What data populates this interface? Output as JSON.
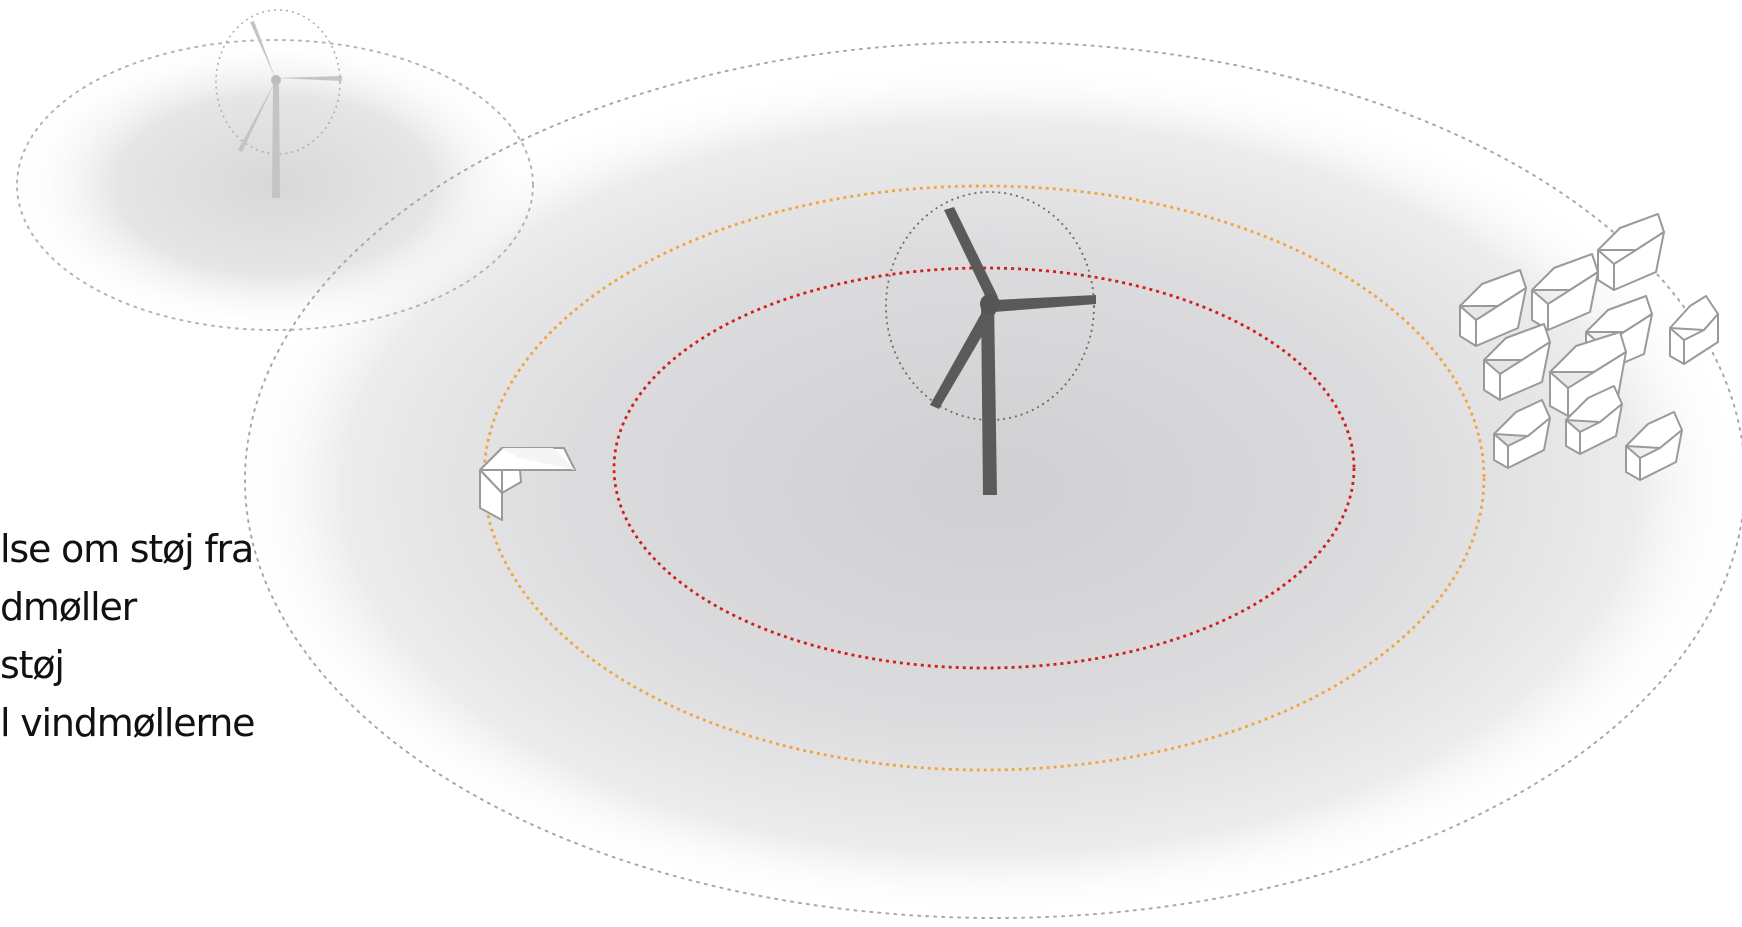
{
  "caption": {
    "lines": [
      "lse om støj fra",
      "dmøller",
      "støj",
      "l vindmøllerne"
    ]
  },
  "colors": {
    "outer_zone_ring": "#a8a8a8",
    "orange_ring": "#f0a640",
    "red_ring": "#d21e1e",
    "main_turbine": "#5a5a5a",
    "faded_turbine": "#bdbdbd",
    "house_outline": "#9a9a9a",
    "shade": "#d4d4d6"
  },
  "icons": {
    "turbine": "wind-turbine-icon",
    "house": "house-icon"
  }
}
